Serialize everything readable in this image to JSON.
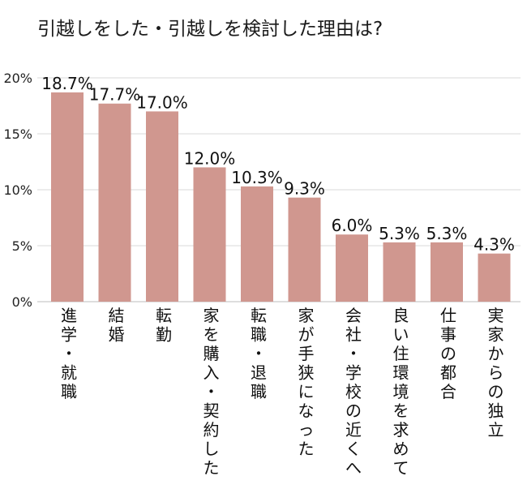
{
  "chart_data": {
    "type": "bar",
    "title": "引越しをした・引越しを検討した理由は?",
    "categories": [
      "進学・就職",
      "結婚",
      "転勤",
      "家を購入・契約した",
      "転職・退職",
      "家が手狭になった",
      "会社・学校の近くへ",
      "良い住環境を求めて",
      "仕事の都合",
      "実家からの独立"
    ],
    "values": [
      18.7,
      17.7,
      17.0,
      12.0,
      10.3,
      9.3,
      6.0,
      5.3,
      5.3,
      4.3
    ],
    "value_labels": [
      "18.7%",
      "17.7%",
      "17.0%",
      "12.0%",
      "10.3%",
      "9.3%",
      "6.0%",
      "5.3%",
      "5.3%",
      "4.3%"
    ],
    "yticks": [
      0,
      5,
      10,
      15,
      20
    ],
    "ytick_labels": [
      "0%",
      "5%",
      "10%",
      "15%",
      "20%"
    ],
    "ylim": [
      0,
      20
    ],
    "xlabel": "",
    "ylabel": "",
    "grid": true,
    "legend": "none",
    "bar_color": "#d0978f",
    "grid_color": "#d9d9d9"
  }
}
